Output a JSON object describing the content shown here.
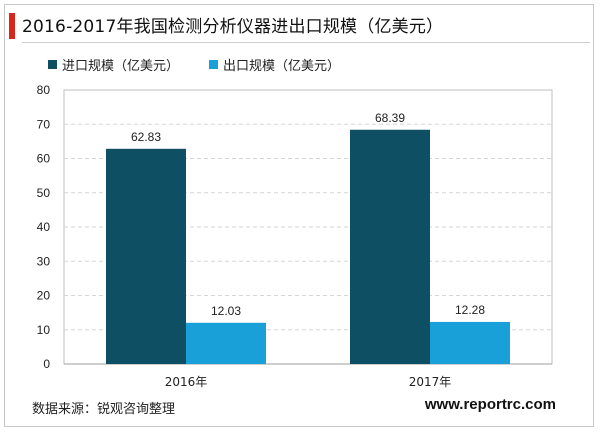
{
  "title": "2016-2017年我国检测分析仪器进出口规模（亿美元）",
  "colors": {
    "accent": "#d9261c",
    "import": "#0e4f63",
    "export": "#1aa0d8",
    "grid": "#d6d6d6"
  },
  "source_text": "数据来源：锐观咨询整理",
  "website": "www.reportrc.com",
  "chart_data": {
    "type": "bar",
    "categories": [
      "2016年",
      "2017年"
    ],
    "series": [
      {
        "name": "进口规模（亿美元）",
        "values": [
          62.83,
          68.39
        ],
        "labels": [
          "62.83",
          "68.39"
        ]
      },
      {
        "name": "出口规模（亿美元）",
        "values": [
          12.03,
          12.28
        ],
        "labels": [
          "12.03",
          "12.28"
        ]
      }
    ],
    "ylim": [
      0,
      80
    ],
    "yticks": [
      0,
      10,
      20,
      30,
      40,
      50,
      60,
      70,
      80
    ],
    "grid": "horizontal-dashed",
    "legend_position": "top-left"
  }
}
